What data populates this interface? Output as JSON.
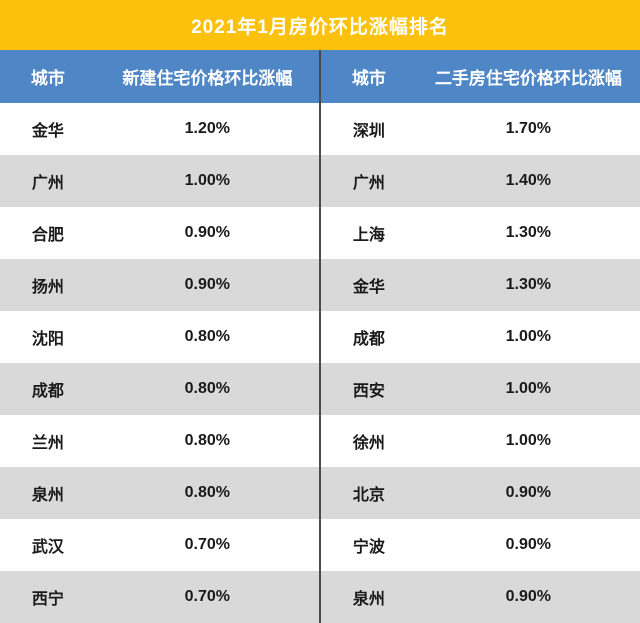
{
  "title": "2021年1月房价环比涨幅排名",
  "colors": {
    "banner_yellow": "#FCC10D",
    "header_blue": "#4E86C6",
    "row_gray": "#D9D9D9",
    "row_white": "#FFFFFF",
    "divider_dark": "#4A4A4A",
    "title_text": "#FFFFFF",
    "header_text": "#FFFFFF",
    "body_text": "#1A1A1A"
  },
  "left_table": {
    "headers": {
      "city": "城市",
      "value": "新建住宅价格环比涨幅"
    },
    "rows": [
      {
        "city": "金华",
        "value": "1.20%"
      },
      {
        "city": "广州",
        "value": "1.00%"
      },
      {
        "city": "合肥",
        "value": "0.90%"
      },
      {
        "city": "扬州",
        "value": "0.90%"
      },
      {
        "city": "沈阳",
        "value": "0.80%"
      },
      {
        "city": "成都",
        "value": "0.80%"
      },
      {
        "city": "兰州",
        "value": "0.80%"
      },
      {
        "city": "泉州",
        "value": "0.80%"
      },
      {
        "city": "武汉",
        "value": "0.70%"
      },
      {
        "city": "西宁",
        "value": "0.70%"
      }
    ]
  },
  "right_table": {
    "headers": {
      "city": "城市",
      "value": "二手房住宅价格环比涨幅"
    },
    "rows": [
      {
        "city": "深圳",
        "value": "1.70%"
      },
      {
        "city": "广州",
        "value": "1.40%"
      },
      {
        "city": "上海",
        "value": "1.30%"
      },
      {
        "city": "金华",
        "value": "1.30%"
      },
      {
        "city": "成都",
        "value": "1.00%"
      },
      {
        "city": "西安",
        "value": "1.00%"
      },
      {
        "city": "徐州",
        "value": "1.00%"
      },
      {
        "city": "北京",
        "value": "0.90%"
      },
      {
        "city": "宁波",
        "value": "0.90%"
      },
      {
        "city": "泉州",
        "value": "0.90%"
      }
    ]
  },
  "chart_data": {
    "type": "table",
    "title": "2021年1月房价环比涨幅排名",
    "tables": [
      {
        "name": "新建住宅价格环比涨幅",
        "columns": [
          "城市",
          "新建住宅价格环比涨幅"
        ],
        "rows": [
          [
            "金华",
            "1.20%"
          ],
          [
            "广州",
            "1.00%"
          ],
          [
            "合肥",
            "0.90%"
          ],
          [
            "扬州",
            "0.90%"
          ],
          [
            "沈阳",
            "0.80%"
          ],
          [
            "成都",
            "0.80%"
          ],
          [
            "兰州",
            "0.80%"
          ],
          [
            "泉州",
            "0.80%"
          ],
          [
            "武汉",
            "0.70%"
          ],
          [
            "西宁",
            "0.70%"
          ]
        ]
      },
      {
        "name": "二手房住宅价格环比涨幅",
        "columns": [
          "城市",
          "二手房住宅价格环比涨幅"
        ],
        "rows": [
          [
            "深圳",
            "1.70%"
          ],
          [
            "广州",
            "1.40%"
          ],
          [
            "上海",
            "1.30%"
          ],
          [
            "金华",
            "1.30%"
          ],
          [
            "成都",
            "1.00%"
          ],
          [
            "西安",
            "1.00%"
          ],
          [
            "徐州",
            "1.00%"
          ],
          [
            "北京",
            "0.90%"
          ],
          [
            "宁波",
            "0.90%"
          ],
          [
            "泉州",
            "0.90%"
          ]
        ]
      }
    ]
  }
}
